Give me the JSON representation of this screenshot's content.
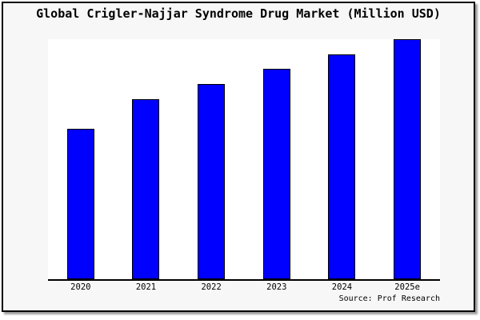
{
  "window": {
    "canvas_background": "#f7f7f7",
    "plot_background": "#ffffff",
    "frame_border_color": "#000000"
  },
  "chart_data": {
    "type": "bar",
    "title": "Global Crigler-Najjar Syndrome Drug Market (Million USD)",
    "categories": [
      "2020",
      "2021",
      "2022",
      "2023",
      "2024",
      "2025e"
    ],
    "values": [
      62.5,
      74.9,
      81.4,
      87.6,
      93.6,
      100
    ],
    "values_unit": "relative bar height, % of tallest bar (2025e); no y-axis scale shown in chart",
    "xlabel": "",
    "ylabel": "",
    "ylim": [
      0,
      100
    ],
    "grid": false,
    "legend": false,
    "y_axis_visible": false,
    "bar_color": "#0000FF",
    "bar_edge_color": "#000000",
    "source_label": "Source: Prof Research"
  }
}
